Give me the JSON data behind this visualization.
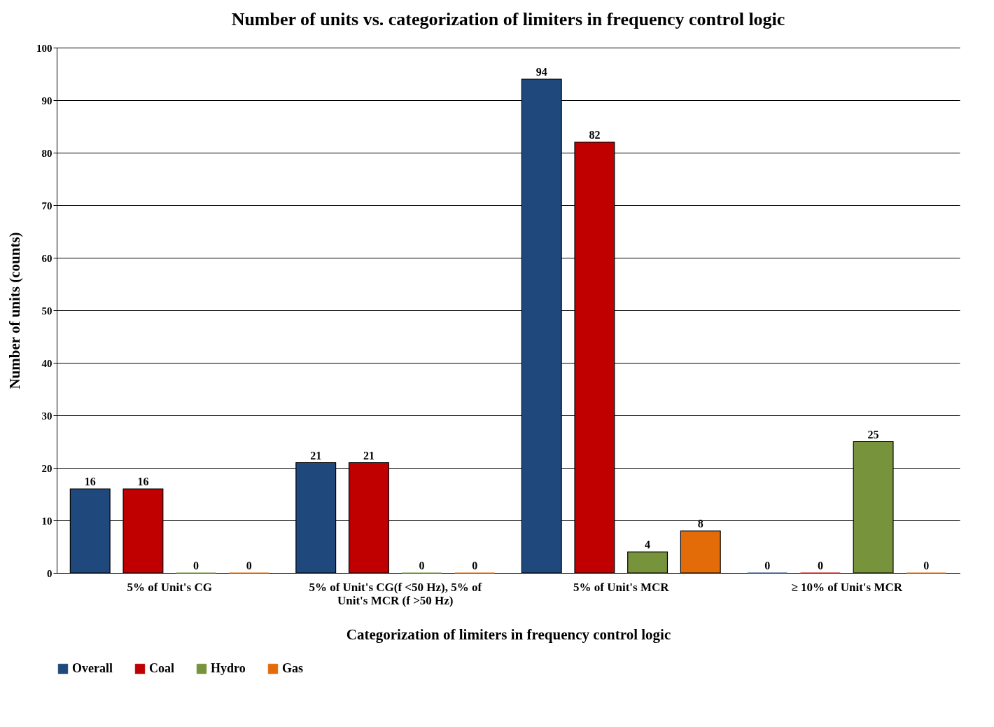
{
  "chart_data": {
    "type": "bar",
    "title": "Number of units vs. categorization of limiters in frequency control logic",
    "xlabel": "Categorization of limiters in frequency control logic",
    "ylabel": "Number of units (counts)",
    "categories": [
      "5% of Unit's CG",
      "5% of Unit's CG(f <50 Hz), 5% of Unit's MCR (f >50 Hz)",
      "5% of Unit's MCR",
      "≥ 10%  of Unit's MCR"
    ],
    "series": [
      {
        "name": "Overall",
        "color": "#1f497d",
        "values": [
          16,
          21,
          94,
          0
        ]
      },
      {
        "name": "Coal",
        "color": "#c00000",
        "values": [
          16,
          21,
          82,
          0
        ]
      },
      {
        "name": "Hydro",
        "color": "#77933c",
        "values": [
          0,
          0,
          4,
          25
        ]
      },
      {
        "name": "Gas",
        "color": "#e36c09",
        "values": [
          0,
          0,
          8,
          0
        ]
      }
    ],
    "ylim": [
      0,
      100
    ],
    "yticks": [
      0,
      10,
      20,
      30,
      40,
      50,
      60,
      70,
      80,
      90,
      100
    ],
    "grid": "y",
    "legend": "bottom",
    "data_labels": true
  }
}
